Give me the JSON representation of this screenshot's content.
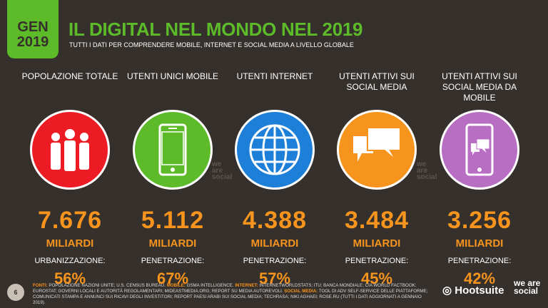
{
  "header": {
    "badge_line1": "GEN",
    "badge_line2": "2019",
    "title": "IL DIGITAL NEL MONDO NEL 2019",
    "subtitle": "TUTTI I DATI PER COMPRENDERE MOBILE, INTERNET E SOCIAL MEDIA A LIVELLO GLOBALE"
  },
  "columns": [
    {
      "label": "POPOLAZIONE TOTALE",
      "icon": "people-icon",
      "color": "#ed1c24",
      "value": "7.676",
      "unit": "MILIARDI",
      "sublabel": "URBANIZZAZIONE:",
      "percent": "56%"
    },
    {
      "label": "UTENTI UNICI MOBILE",
      "icon": "mobile-phone-icon",
      "color": "#5dbb2a",
      "value": "5.112",
      "unit": "MILIARDI",
      "sublabel": "PENETRAZIONE:",
      "percent": "67%"
    },
    {
      "label": "UTENTI INTERNET",
      "icon": "globe-icon",
      "color": "#1e7fd8",
      "value": "4.388",
      "unit": "MILIARDI",
      "sublabel": "PENETRAZIONE:",
      "percent": "57%"
    },
    {
      "label": "UTENTI ATTIVI SUI SOCIAL MEDIA",
      "icon": "chat-bubbles-icon",
      "color": "#f7941d",
      "value": "3.484",
      "unit": "MILIARDI",
      "sublabel": "PENETRAZIONE:",
      "percent": "45%"
    },
    {
      "label": "UTENTI ATTIVI SUI SOCIAL MEDIA DA MOBILE",
      "icon": "mobile-chat-icon",
      "color": "#b86fc3",
      "value": "3.256",
      "unit": "MILIARDI",
      "sublabel": "PENETRAZIONE:",
      "percent": "42%"
    }
  ],
  "watermark": "we are social",
  "footer": {
    "page": "6",
    "k1": "FONTI:",
    "t1": " POPOLAZIONE NAZIONI UNITE; U.S. CENSUS BUREAU. ",
    "k2": "MOBILE:",
    "t2": " GSMA INTELLIGENCE. ",
    "k3": "INTERNET:",
    "t3": " INTERNETWORLDSTATS; ITU; BANCA MONDIALE; CIA WORLD FACTBOOK; EUROSTAT; GOVERNI LOCALI E AUTORITÀ REGOLAMENTARI; MIDEASTMEDIA.ORG; REPORT SU MEDIA AUTOREVOLI. ",
    "k4": "SOCIAL MEDIA:",
    "t4": " TOOL DI ADV SELF-SERVICE DELLE PIATTAFORME; COMUNICATI STAMPA E ANNUNCI SUI RICAVI DEGLI INVESTITORI; REPORT PAESI ARABI SUI SOCIAL MEDIA; TECHRASA; NIKI AGHAEI; ROSE.RU (TUTTI I DATI AGGIORNATI A GENNAIO 2019).",
    "hootsuite": "Hootsuite",
    "was": "we are social"
  }
}
